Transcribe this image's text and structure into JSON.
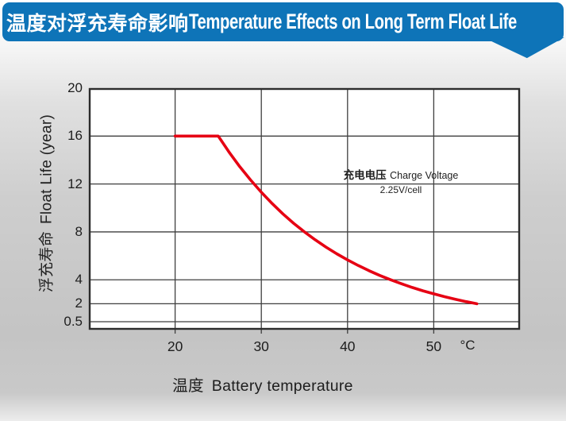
{
  "header": {
    "title_zh": "温度对浮充寿命影响",
    "title_en": "Temperature Effects on Long Term Float Life"
  },
  "colors": {
    "banner_blue": "#0e74b8",
    "curve_red": "#e60013",
    "grid": "#3f3f3f",
    "plot_border": "#2c2c2c",
    "text": "#1d1d1d"
  },
  "chart_data": {
    "type": "line",
    "title": "温度对浮充寿命影响 Temperature Effects on Long Term Float Life",
    "xlabel_zh": "温度",
    "xlabel_en": "Battery temperature",
    "x_unit": "°C",
    "ylabel_zh": "浮充寿命",
    "ylabel_en": "Float Life (year)",
    "x_ticks": [
      20,
      30,
      40,
      50
    ],
    "y_ticks": [
      20,
      16,
      12,
      8,
      4,
      2,
      0.5
    ],
    "x_domain": [
      10,
      60
    ],
    "y_axis": {
      "scale": "linear",
      "top_value": 20,
      "bottom_gridline_value": 0.5
    },
    "grid": true,
    "legend": "none",
    "annotation": {
      "zh": "充电电压",
      "en": "Charge Voltage",
      "value": "2.25V/cell"
    },
    "series": [
      {
        "name": "float-life-at-2.25V-per-cell",
        "color": "#e60013",
        "points": [
          [
            20,
            16
          ],
          [
            25,
            16
          ],
          [
            26.25,
            14.67
          ],
          [
            27.5,
            13.45
          ],
          [
            28.75,
            12.34
          ],
          [
            30,
            11.31
          ],
          [
            31.25,
            10.37
          ],
          [
            32.5,
            9.51
          ],
          [
            33.75,
            8.72
          ],
          [
            35,
            8
          ],
          [
            36.25,
            7.34
          ],
          [
            37.5,
            6.73
          ],
          [
            38.75,
            6.17
          ],
          [
            40,
            5.66
          ],
          [
            41.25,
            5.19
          ],
          [
            42.5,
            4.76
          ],
          [
            43.75,
            4.36
          ],
          [
            45,
            4
          ],
          [
            46.25,
            3.67
          ],
          [
            47.5,
            3.36
          ],
          [
            48.75,
            3.08
          ],
          [
            50,
            2.83
          ],
          [
            51.25,
            2.59
          ],
          [
            52.5,
            2.38
          ],
          [
            53.75,
            2.18
          ],
          [
            55,
            2
          ]
        ]
      }
    ]
  }
}
